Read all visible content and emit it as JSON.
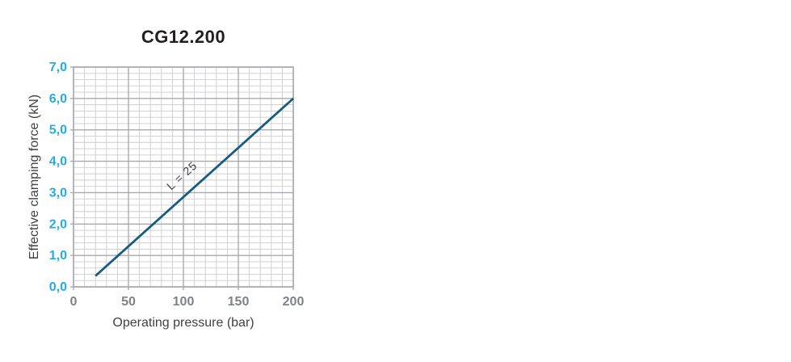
{
  "chart_data": {
    "type": "line",
    "title": "CG12.200",
    "xlabel": "Operating pressure (bar)",
    "ylabel": "Effective clamping force (kN)",
    "xlim": [
      0,
      200
    ],
    "ylim": [
      0,
      7
    ],
    "x_major_step": 50,
    "x_minor_step": 10,
    "y_major_step": 1,
    "y_minor_step": 0.2,
    "x_tick_labels": [
      "0",
      "50",
      "100",
      "150",
      "200"
    ],
    "y_tick_labels": [
      "0,0",
      "1,0",
      "2,0",
      "3,0",
      "4,0",
      "5,0",
      "6,0",
      "7,0"
    ],
    "grid": "major+minor",
    "legend_position": "label-on-line",
    "series": [
      {
        "name": "L = 25",
        "x": [
          20,
          200
        ],
        "y": [
          0.35,
          6.0
        ],
        "color": "#175c7e",
        "label_anchor": {
          "x": 101,
          "y": 3.45
        },
        "label_rotation_deg": -42
      }
    ],
    "colors": {
      "background": "#ffffff",
      "title": "#231f20",
      "axis_label": "#414042",
      "y_tick": "#29abe2",
      "x_tick": "#808285",
      "grid_minor": "#cdced0",
      "grid_major": "#a8aaad",
      "series_label": "#414042"
    }
  }
}
